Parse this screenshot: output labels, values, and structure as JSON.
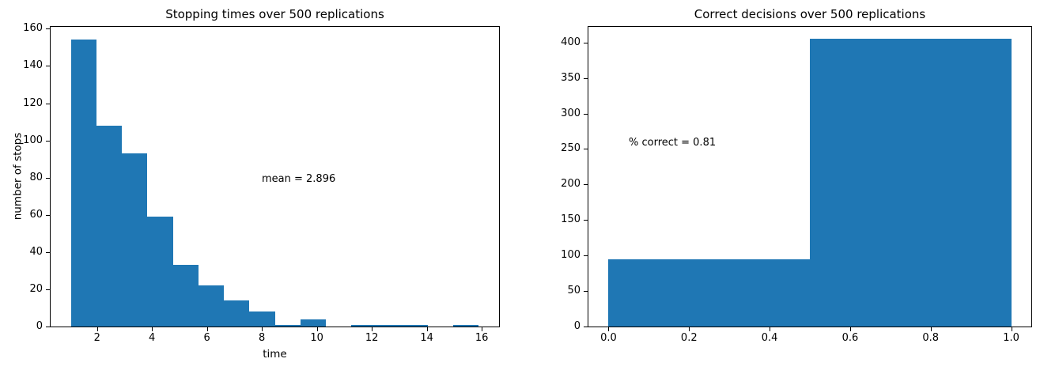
{
  "figure": {
    "background": "#ffffff",
    "text_color": "#000000",
    "accent_color": "#1f77b4"
  },
  "chart_data": [
    {
      "type": "bar",
      "chart_kind": "histogram",
      "title": "Stopping times over 500 replications",
      "xlabel": "time",
      "ylabel": "number of stops",
      "total_replications": 500,
      "bar_color": "#1f77b4",
      "bin_edges": [
        1.05,
        1.978,
        2.905,
        3.833,
        4.76,
        5.688,
        6.615,
        7.543,
        8.47,
        9.398,
        10.325,
        11.253,
        12.18,
        13.108,
        14.035,
        14.963,
        15.89
      ],
      "counts": [
        154,
        108,
        93,
        59,
        33,
        22,
        14,
        8,
        1,
        4,
        0,
        1,
        1,
        1,
        0,
        1
      ],
      "xlim": [
        0.31,
        16.63
      ],
      "ylim": [
        0,
        161
      ],
      "xtick_values": [
        2,
        4,
        6,
        8,
        10,
        12,
        14,
        16
      ],
      "xtick_labels": [
        "2",
        "4",
        "6",
        "8",
        "10",
        "12",
        "14",
        "16"
      ],
      "ytick_values": [
        0,
        20,
        40,
        60,
        80,
        100,
        120,
        140,
        160
      ],
      "ytick_labels": [
        "0",
        "20",
        "40",
        "60",
        "80",
        "100",
        "120",
        "140",
        "160"
      ],
      "grid": false,
      "legend": null,
      "annotation": {
        "text": "mean = 2.896",
        "x": 8.0,
        "y": 79
      }
    },
    {
      "type": "bar",
      "chart_kind": "histogram",
      "title": "Correct decisions over 500 replications",
      "xlabel": "",
      "ylabel": "",
      "total_replications": 500,
      "bar_color": "#1f77b4",
      "bin_edges": [
        0.0,
        0.5,
        1.0
      ],
      "counts": [
        95,
        405
      ],
      "xlim": [
        -0.05,
        1.05
      ],
      "ylim": [
        0,
        422
      ],
      "xtick_values": [
        0.0,
        0.2,
        0.4,
        0.6,
        0.8,
        1.0
      ],
      "xtick_labels": [
        "0.0",
        "0.2",
        "0.4",
        "0.6",
        "0.8",
        "1.0"
      ],
      "ytick_values": [
        0,
        50,
        100,
        150,
        200,
        250,
        300,
        350,
        400
      ],
      "ytick_labels": [
        "0",
        "50",
        "100",
        "150",
        "200",
        "250",
        "300",
        "350",
        "400"
      ],
      "grid": false,
      "legend": null,
      "annotation": {
        "text": "% correct = 0.81",
        "x": 0.05,
        "y": 258
      }
    }
  ]
}
